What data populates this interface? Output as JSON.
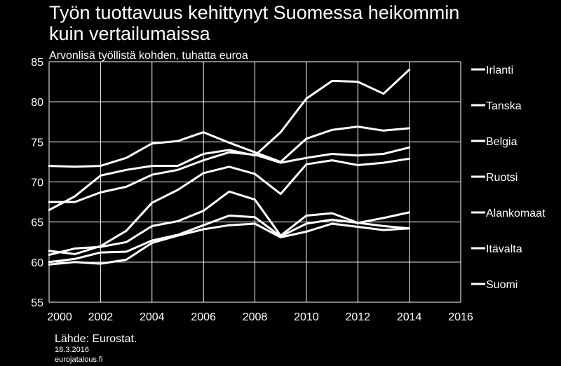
{
  "chart_data": {
    "type": "line",
    "title_lines": [
      "Työn tuottavuus kehittynyt Suomessa heikommin",
      "kuin vertailumaissa"
    ],
    "subtitle": "Arvonlisä työllistä kohden, tuhatta euroa",
    "xlim": [
      2000,
      2016
    ],
    "ylim": [
      55,
      85
    ],
    "x_ticks": [
      2000,
      2002,
      2004,
      2006,
      2008,
      2010,
      2012,
      2014,
      2016
    ],
    "y_ticks": [
      55,
      60,
      65,
      70,
      75,
      80,
      85
    ],
    "grid": true,
    "legend_position": "right",
    "x": [
      2000,
      2001,
      2002,
      2003,
      2004,
      2005,
      2006,
      2007,
      2008,
      2009,
      2010,
      2011,
      2012,
      2013,
      2014
    ],
    "series": [
      {
        "name": "Irlanti",
        "values": [
          66.5,
          68.2,
          70.8,
          71.5,
          72.0,
          72.0,
          73.5,
          74.0,
          73.3,
          76.2,
          80.4,
          82.6,
          82.5,
          81.0,
          84.0
        ]
      },
      {
        "name": "Tanska",
        "values": [
          72.0,
          71.9,
          72.0,
          73.0,
          74.8,
          75.1,
          76.2,
          74.9,
          73.7,
          72.5,
          75.4,
          76.5,
          76.9,
          76.4,
          76.7
        ]
      },
      {
        "name": "Belgia",
        "values": [
          67.5,
          67.5,
          68.7,
          69.4,
          70.9,
          71.5,
          72.7,
          73.7,
          73.4,
          72.4,
          73.0,
          73.5,
          73.3,
          73.5,
          74.3
        ]
      },
      {
        "name": "Ruotsi",
        "values": [
          61.4,
          61.0,
          62.0,
          63.9,
          67.4,
          69.0,
          71.1,
          71.9,
          71.0,
          68.5,
          72.2,
          72.7,
          72.1,
          72.4,
          72.9
        ]
      },
      {
        "name": "Alankomaat",
        "values": [
          60.9,
          61.7,
          61.9,
          62.5,
          64.5,
          65.1,
          66.4,
          68.8,
          67.8,
          63.3,
          65.8,
          66.1,
          64.9,
          65.5,
          66.2
        ]
      },
      {
        "name": "Itävalta",
        "values": [
          60.0,
          60.4,
          61.2,
          61.3,
          62.7,
          63.4,
          64.6,
          65.8,
          65.6,
          63.2,
          64.8,
          65.3,
          64.9,
          64.5,
          64.2
        ]
      },
      {
        "name": "Suomi",
        "values": [
          59.7,
          60.0,
          59.8,
          60.3,
          62.4,
          63.3,
          64.1,
          64.6,
          64.8,
          63.1,
          63.8,
          64.8,
          64.4,
          64.0,
          64.2
        ]
      }
    ]
  },
  "footer": {
    "source": "Lähde: Eurostat.",
    "date": "18.3.2016",
    "site": "eurojatalous.fi"
  }
}
